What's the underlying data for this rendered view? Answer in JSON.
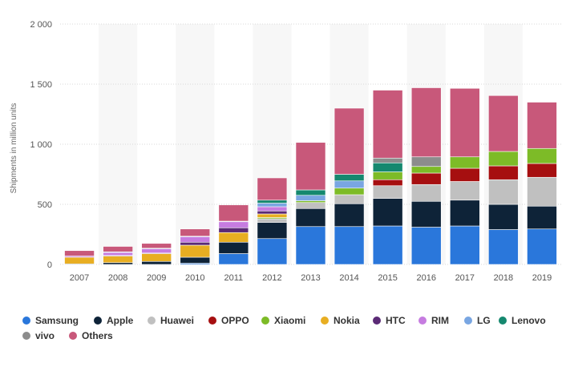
{
  "chart_data": {
    "type": "bar",
    "stacked": true,
    "title": "",
    "xlabel": "",
    "ylabel": "Shipments in million units",
    "ylim": [
      0,
      2000
    ],
    "yticks": [
      0,
      500,
      1000,
      1500,
      2000
    ],
    "ytick_labels": [
      "0",
      "500",
      "1 000",
      "1 500",
      "2 000"
    ],
    "grid": true,
    "legend_position": "bottom",
    "categories": [
      "2007",
      "2008",
      "2009",
      "2010",
      "2011",
      "2012",
      "2013",
      "2014",
      "2015",
      "2016",
      "2017",
      "2018",
      "2019"
    ],
    "series": [
      {
        "name": "Samsung",
        "color": "#2a77db",
        "values": [
          0,
          0,
          0,
          10,
          90,
          215,
          315,
          315,
          320,
          310,
          320,
          290,
          295
        ]
      },
      {
        "name": "Apple",
        "color": "#0e2338",
        "values": [
          5,
          15,
          25,
          50,
          95,
          135,
          150,
          190,
          230,
          215,
          215,
          210,
          190
        ]
      },
      {
        "name": "Huawei",
        "color": "#c0c0c0",
        "values": [
          0,
          0,
          0,
          0,
          0,
          30,
          50,
          75,
          105,
          140,
          155,
          205,
          240
        ]
      },
      {
        "name": "OPPO",
        "color": "#a60f10",
        "values": [
          0,
          0,
          0,
          0,
          0,
          0,
          0,
          0,
          50,
          95,
          110,
          115,
          115
        ]
      },
      {
        "name": "Xiaomi",
        "color": "#7dbb27",
        "values": [
          0,
          0,
          0,
          0,
          0,
          10,
          15,
          55,
          65,
          55,
          95,
          120,
          125
        ]
      },
      {
        "name": "Nokia",
        "color": "#e8ae22",
        "values": [
          55,
          55,
          65,
          100,
          80,
          30,
          0,
          0,
          0,
          0,
          0,
          0,
          0
        ]
      },
      {
        "name": "HTC",
        "color": "#5b2a76",
        "values": [
          0,
          5,
          5,
          25,
          40,
          25,
          0,
          0,
          0,
          0,
          0,
          0,
          0
        ]
      },
      {
        "name": "RIM",
        "color": "#c67ce0",
        "values": [
          10,
          25,
          35,
          45,
          50,
          35,
          0,
          0,
          0,
          0,
          0,
          0,
          0
        ]
      },
      {
        "name": "LG",
        "color": "#79a6e2",
        "values": [
          0,
          5,
          5,
          5,
          5,
          30,
          45,
          60,
          0,
          0,
          0,
          0,
          0
        ]
      },
      {
        "name": "Lenovo",
        "color": "#15886f",
        "values": [
          0,
          0,
          0,
          0,
          0,
          25,
          45,
          55,
          75,
          0,
          0,
          0,
          0
        ]
      },
      {
        "name": "vivo",
        "color": "#8c8c8c",
        "values": [
          0,
          0,
          0,
          0,
          0,
          0,
          0,
          0,
          40,
          80,
          0,
          0,
          0
        ]
      },
      {
        "name": "Others",
        "color": "#c8587a",
        "values": [
          45,
          45,
          40,
          60,
          135,
          185,
          395,
          550,
          565,
          575,
          570,
          465,
          385
        ]
      }
    ]
  }
}
